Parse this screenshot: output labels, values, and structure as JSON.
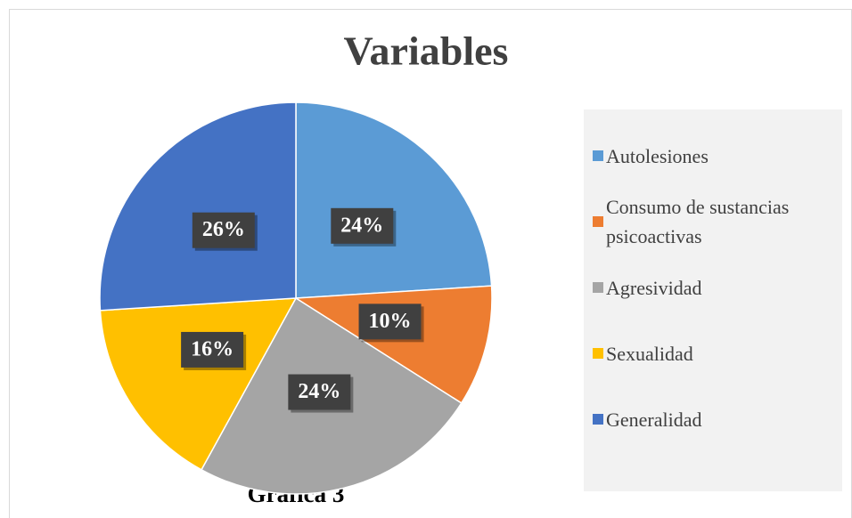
{
  "chart_data": {
    "type": "pie",
    "title": "Variables",
    "caption": "Gráfica 3",
    "categories": [
      "Autolesiones",
      "Consumo de sustancias psicoactivas",
      "Agresividad",
      "Sexualidad",
      "Generalidad"
    ],
    "values": [
      24,
      10,
      24,
      16,
      26
    ],
    "value_labels": [
      "24%",
      "10%",
      "24%",
      "16%",
      "26%"
    ],
    "colors": [
      "#5b9bd5",
      "#ed7d31",
      "#a5a5a5",
      "#ffc000",
      "#4472c4"
    ],
    "legend": "right"
  }
}
